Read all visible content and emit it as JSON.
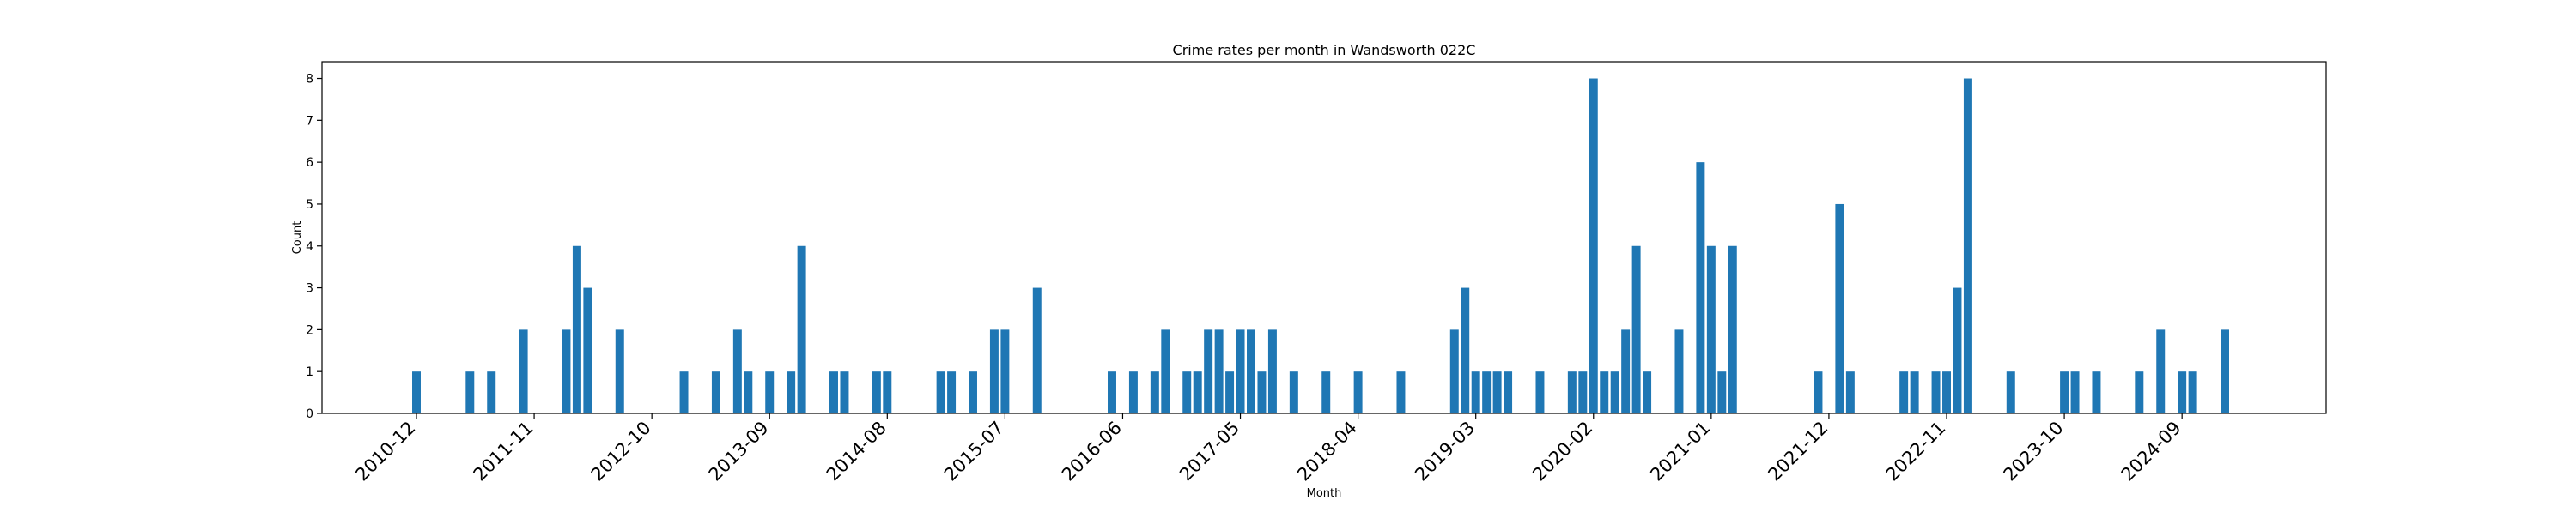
{
  "chart_data": {
    "type": "bar",
    "title": "Crime rates per month in Wandsworth 022C",
    "xlabel": "Month",
    "ylabel": "Count",
    "ylim": [
      0,
      8.4
    ],
    "yticks": [
      0,
      1,
      2,
      3,
      4,
      5,
      6,
      7,
      8
    ],
    "xtick_labels": [
      "2010-12",
      "2011-11",
      "2012-10",
      "2013-09",
      "2014-08",
      "2015-07",
      "2016-06",
      "2017-05",
      "2018-04",
      "2019-03",
      "2020-02",
      "2021-01",
      "2021-12",
      "2022-11",
      "2023-10",
      "2024-09"
    ],
    "bar_color": "#1f77b4",
    "grid": false,
    "x": [
      "2010-12",
      "2011-05",
      "2011-07",
      "2011-10",
      "2012-02",
      "2012-03",
      "2012-04",
      "2012-07",
      "2013-01",
      "2013-04",
      "2013-06",
      "2013-07",
      "2013-09",
      "2013-11",
      "2013-12",
      "2014-03",
      "2014-04",
      "2014-07",
      "2014-08",
      "2015-01",
      "2015-02",
      "2015-04",
      "2015-06",
      "2015-07",
      "2015-10",
      "2016-05",
      "2016-07",
      "2016-09",
      "2016-10",
      "2016-12",
      "2017-01",
      "2017-02",
      "2017-03",
      "2017-04",
      "2017-05",
      "2017-06",
      "2017-07",
      "2017-08",
      "2017-10",
      "2018-01",
      "2018-04",
      "2018-08",
      "2019-01",
      "2019-02",
      "2019-03",
      "2019-04",
      "2019-05",
      "2019-06",
      "2019-09",
      "2019-12",
      "2020-01",
      "2020-02",
      "2020-03",
      "2020-04",
      "2020-05",
      "2020-06",
      "2020-07",
      "2020-10",
      "2020-12",
      "2021-01",
      "2021-02",
      "2021-03",
      "2021-11",
      "2022-01",
      "2022-02",
      "2022-07",
      "2022-08",
      "2022-10",
      "2022-11",
      "2022-12",
      "2023-01",
      "2023-05",
      "2023-10",
      "2023-11",
      "2024-01",
      "2024-05",
      "2024-07",
      "2024-09",
      "2024-10",
      "2025-01"
    ],
    "values": [
      1,
      1,
      1,
      2,
      2,
      4,
      3,
      2,
      1,
      1,
      2,
      1,
      1,
      1,
      4,
      1,
      1,
      1,
      1,
      1,
      1,
      1,
      2,
      2,
      3,
      1,
      1,
      1,
      2,
      1,
      1,
      2,
      2,
      1,
      2,
      2,
      1,
      2,
      1,
      1,
      1,
      1,
      2,
      3,
      1,
      1,
      1,
      1,
      1,
      1,
      1,
      8,
      1,
      1,
      2,
      4,
      1,
      2,
      6,
      4,
      1,
      4,
      1,
      5,
      1,
      1,
      1,
      1,
      1,
      3,
      8,
      1,
      1,
      1,
      1,
      1,
      2,
      1,
      1,
      2
    ]
  }
}
